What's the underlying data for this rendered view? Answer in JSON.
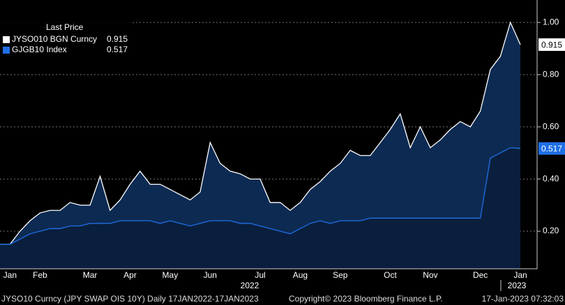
{
  "chart_data": {
    "type": "area-line",
    "legend_title": "Last Price",
    "categories": [
      null,
      "Jan",
      null,
      null,
      "Feb",
      null,
      null,
      null,
      null,
      "Mar",
      null,
      null,
      null,
      "Apr",
      null,
      null,
      null,
      "May",
      null,
      null,
      null,
      "Jun",
      null,
      null,
      null,
      null,
      "Jul",
      null,
      null,
      null,
      "Aug",
      null,
      null,
      null,
      "Sep",
      null,
      null,
      null,
      null,
      "Oct",
      null,
      null,
      null,
      "Nov",
      null,
      null,
      null,
      null,
      "Dec",
      null,
      null,
      null,
      "Jan"
    ],
    "year_labels": [
      "2022",
      "2023"
    ],
    "series": [
      {
        "name": "JYSO010 BGN Curncy",
        "color": "#ffffff",
        "fill": "#0d2a52",
        "values": [
          0.15,
          0.15,
          0.2,
          0.24,
          0.27,
          0.28,
          0.28,
          0.31,
          0.3,
          0.3,
          0.41,
          0.28,
          0.32,
          0.38,
          0.43,
          0.38,
          0.38,
          0.36,
          0.34,
          0.32,
          0.35,
          0.54,
          0.46,
          0.43,
          0.42,
          0.4,
          0.4,
          0.31,
          0.31,
          0.28,
          0.31,
          0.36,
          0.39,
          0.43,
          0.46,
          0.51,
          0.49,
          0.49,
          0.54,
          0.59,
          0.65,
          0.52,
          0.6,
          0.52,
          0.55,
          0.59,
          0.62,
          0.6,
          0.66,
          0.82,
          0.87,
          1.0,
          0.915
        ]
      },
      {
        "name": "GJGB10 Index",
        "color": "#1f6fe6",
        "fill": "#0a1f3d",
        "values": [
          0.15,
          0.15,
          0.17,
          0.19,
          0.2,
          0.21,
          0.21,
          0.22,
          0.22,
          0.23,
          0.23,
          0.23,
          0.24,
          0.24,
          0.24,
          0.24,
          0.23,
          0.24,
          0.23,
          0.22,
          0.23,
          0.24,
          0.24,
          0.24,
          0.23,
          0.23,
          0.22,
          0.21,
          0.2,
          0.19,
          0.21,
          0.23,
          0.24,
          0.23,
          0.24,
          0.24,
          0.24,
          0.25,
          0.25,
          0.25,
          0.25,
          0.25,
          0.25,
          0.25,
          0.25,
          0.25,
          0.25,
          0.25,
          0.25,
          0.48,
          0.5,
          0.52,
          0.517
        ]
      }
    ],
    "ylim": [
      0.056,
      1.086
    ],
    "yticks": [
      {
        "value": 0.2,
        "label": "0.20"
      },
      {
        "value": 0.4,
        "label": "0.40"
      },
      {
        "value": 0.6,
        "label": "0.60"
      },
      {
        "value": 0.8,
        "label": "0.80"
      },
      {
        "value": 1.0,
        "label": "1.00"
      }
    ],
    "grid": true,
    "footer": {
      "source": "JYSO10 Curncy (JPY SWAP OIS 10Y)  Daily 17JAN2022-17JAN2023",
      "copyright": "Copyright© 2023 Bloomberg Finance L.P.",
      "timestamp": "17-Jan-2023 07:32:03"
    }
  }
}
